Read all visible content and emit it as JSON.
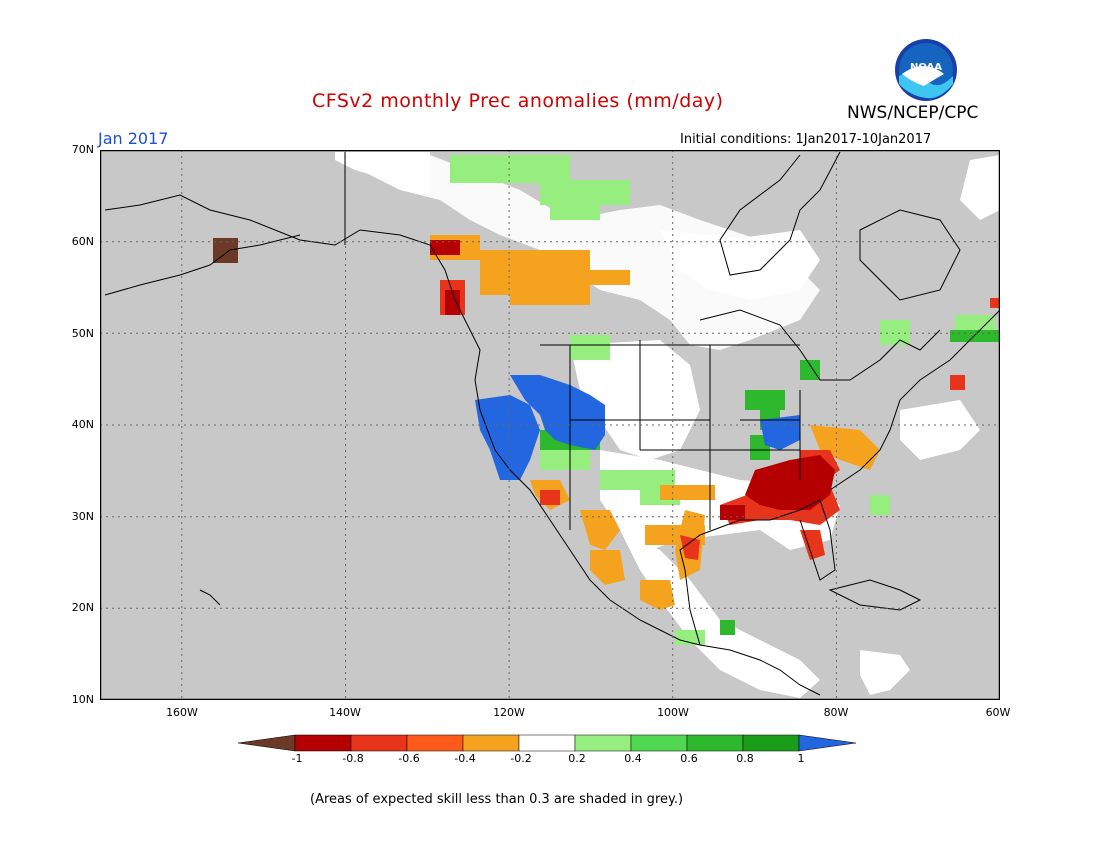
{
  "header": {
    "title": "CFSv2 monthly Prec anomalies (mm/day)",
    "month": "Jan 2017",
    "agency": "NWS/NCEP/CPC",
    "initial_conditions": "Initial conditions: 1Jan2017-10Jan2017",
    "logo_text": "NOAA"
  },
  "map": {
    "lat_range": [
      10,
      70
    ],
    "lon_range": [
      -170,
      -60
    ],
    "lat_labels": [
      "70N",
      "60N",
      "50N",
      "40N",
      "30N",
      "20N",
      "10N"
    ],
    "lon_labels": [
      "160W",
      "140W",
      "120W",
      "100W",
      "80W",
      "60W"
    ],
    "colors": {
      "ocean_grey": "#c8c8c8",
      "frame": "#000000"
    }
  },
  "colorbar": {
    "labels": [
      "-1",
      "-0.8",
      "-0.6",
      "-0.4",
      "-0.2",
      "0.2",
      "0.4",
      "0.6",
      "0.8",
      "1"
    ],
    "colors": [
      "#6b3a26",
      "#b40000",
      "#e8341a",
      "#ff5a1a",
      "#f5a21e",
      "#ffffff",
      "#96ee7e",
      "#50d850",
      "#2eb82e",
      "#1a9e1a",
      "#2266e0"
    ]
  },
  "footnote": "(Areas of expected skill less than 0.3 are shaded in grey.)"
}
